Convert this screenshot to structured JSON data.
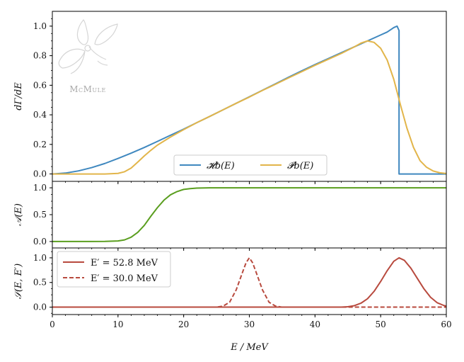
{
  "chart_data": [
    {
      "type": "line",
      "name": "rate",
      "ylabel": "dΓ/dE",
      "xlim": [
        0,
        60
      ],
      "ylim": [
        -0.05,
        1.1
      ],
      "yticks": [
        0.0,
        0.2,
        0.4,
        0.6,
        0.8,
        1.0
      ],
      "ytick_labels": [
        "0.0",
        "0.2",
        "0.4",
        "0.6",
        "0.8",
        "1.0"
      ],
      "watermark": "McMule",
      "legend_position": "bottom-center",
      "series": [
        {
          "name": "H_b(E)",
          "label": "𝓗b(E)",
          "color": "#3f88bf",
          "x": [
            0,
            2,
            4,
            6,
            8,
            10,
            12,
            14,
            16,
            18,
            20,
            22,
            24,
            26,
            28,
            30,
            32,
            34,
            36,
            38,
            40,
            42,
            44,
            46,
            48,
            50,
            51,
            52,
            52.5,
            52.8,
            52.8,
            60
          ],
          "y": [
            0.0,
            0.006,
            0.021,
            0.043,
            0.071,
            0.105,
            0.141,
            0.179,
            0.22,
            0.262,
            0.303,
            0.347,
            0.39,
            0.434,
            0.478,
            0.522,
            0.566,
            0.61,
            0.655,
            0.698,
            0.74,
            0.78,
            0.82,
            0.86,
            0.9,
            0.94,
            0.96,
            0.99,
            1.0,
            0.97,
            0.0,
            0.0
          ]
        },
        {
          "name": "P_b(E)",
          "label": "𝓟b(E)",
          "color": "#e2b54a",
          "x": [
            0,
            2,
            4,
            6,
            8,
            10,
            11,
            12,
            13,
            14,
            15,
            16,
            18,
            20,
            22,
            24,
            26,
            28,
            30,
            32,
            34,
            36,
            38,
            40,
            42,
            44,
            46,
            47,
            48,
            49,
            50,
            51,
            52,
            53,
            54,
            55,
            56,
            57,
            58,
            59,
            60
          ],
          "y": [
            0.0,
            0.0,
            0.0,
            0.0,
            0.0,
            0.004,
            0.015,
            0.04,
            0.08,
            0.122,
            0.16,
            0.195,
            0.25,
            0.3,
            0.347,
            0.39,
            0.434,
            0.478,
            0.52,
            0.565,
            0.607,
            0.65,
            0.692,
            0.735,
            0.775,
            0.815,
            0.86,
            0.885,
            0.9,
            0.89,
            0.85,
            0.77,
            0.64,
            0.47,
            0.31,
            0.18,
            0.09,
            0.045,
            0.02,
            0.008,
            0.003
          ]
        }
      ]
    },
    {
      "type": "line",
      "name": "acceptance",
      "ylabel": "𝒜(E)",
      "xlim": [
        0,
        60
      ],
      "ylim": [
        -0.12,
        1.12
      ],
      "yticks": [
        0.0,
        0.5,
        1.0
      ],
      "ytick_labels": [
        "0.0",
        "0.5",
        "1.0"
      ],
      "series": [
        {
          "name": "A(E)",
          "color": "#5a9e1f",
          "x": [
            0,
            4,
            8,
            10,
            11,
            12,
            13,
            14,
            15,
            16,
            17,
            18,
            19,
            20,
            21,
            22,
            24,
            30,
            40,
            50,
            60
          ],
          "y": [
            0.0,
            0.0,
            0.002,
            0.01,
            0.03,
            0.08,
            0.17,
            0.3,
            0.47,
            0.63,
            0.77,
            0.87,
            0.93,
            0.97,
            0.985,
            0.995,
            1.0,
            1.0,
            1.0,
            1.0,
            1.0
          ]
        }
      ]
    },
    {
      "type": "line",
      "name": "smearing",
      "ylabel": "𝒮(E, E′)",
      "xlabel": "E / MeV",
      "xlim": [
        0,
        60
      ],
      "ylim": [
        -0.15,
        1.2
      ],
      "xticks": [
        0,
        10,
        20,
        30,
        40,
        50,
        60
      ],
      "xtick_labels": [
        "0",
        "10",
        "20",
        "30",
        "40",
        "50",
        "60"
      ],
      "yticks": [
        0.0,
        0.5,
        1.0
      ],
      "ytick_labels": [
        "0.0",
        "0.5",
        "1.0"
      ],
      "legend_position": "top-left",
      "series": [
        {
          "name": "E′ = 52.8 MeV",
          "label": "E′ = 52.8 MeV",
          "color": "#b84a3e",
          "dash": "solid",
          "x": [
            0,
            44,
            45,
            46,
            47,
            48,
            49,
            50,
            51,
            52,
            52.8,
            53.6,
            54.6,
            55.6,
            56.6,
            57.6,
            58.6,
            59.6,
            60
          ],
          "y": [
            0.0,
            0.0,
            0.008,
            0.03,
            0.08,
            0.17,
            0.32,
            0.52,
            0.74,
            0.93,
            1.0,
            0.95,
            0.79,
            0.58,
            0.37,
            0.2,
            0.09,
            0.035,
            0.02
          ]
        },
        {
          "name": "E′ = 30.0 MeV",
          "label": "E′ = 30.0 MeV",
          "color": "#b84a3e",
          "dash": "dashed",
          "x": [
            0,
            25,
            26,
            27,
            28,
            29,
            29.5,
            30,
            30.5,
            31,
            32,
            33,
            34,
            35,
            60
          ],
          "y": [
            0.0,
            0.0,
            0.02,
            0.1,
            0.35,
            0.72,
            0.9,
            1.0,
            0.9,
            0.72,
            0.35,
            0.1,
            0.02,
            0.0,
            0.0
          ]
        }
      ]
    }
  ]
}
